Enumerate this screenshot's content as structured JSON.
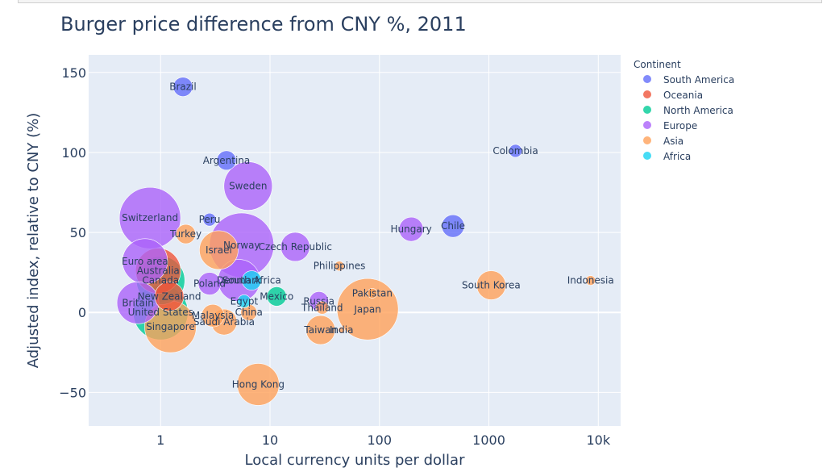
{
  "chart_data": {
    "type": "scatter",
    "title": "Burger price difference from CNY %, 2011",
    "xlabel": "Local currency units per dollar",
    "ylabel": "Adjusted index, relative to CNY (%)",
    "x_scale": "log",
    "xlim": [
      0.22,
      16000
    ],
    "ylim": [
      -71,
      161
    ],
    "x_ticks": [
      1,
      10,
      100,
      1000,
      10000
    ],
    "x_tick_labels": [
      "1",
      "10",
      "100",
      "1000",
      "10k"
    ],
    "y_ticks": [
      150,
      100,
      50,
      0,
      -50
    ],
    "y_tick_labels": [
      "150",
      "100",
      "50",
      "0",
      "−50"
    ],
    "grid": true,
    "background": "#e5ecf6",
    "legend": {
      "title": "Continent",
      "placement": "right",
      "entries": [
        "South America",
        "Oceania",
        "North America",
        "Europe",
        "Asia",
        "Africa"
      ]
    },
    "colors": {
      "South America": "#636efa",
      "Oceania": "#ef553b",
      "North America": "#00cc96",
      "Europe": "#ab63fa",
      "Asia": "#ffa15a",
      "Africa": "#19d3f3"
    },
    "series": [
      {
        "name": "South America",
        "points": [
          {
            "label": "Brazil",
            "x": 1.6,
            "y": 141,
            "size": 12
          },
          {
            "label": "Argentina",
            "x": 4.0,
            "y": 95,
            "size": 12
          },
          {
            "label": "Peru",
            "x": 2.8,
            "y": 58,
            "size": 8
          },
          {
            "label": "Colombia",
            "x": 1750,
            "y": 101,
            "size": 8
          },
          {
            "label": "Chile",
            "x": 470,
            "y": 54,
            "size": 14
          }
        ]
      },
      {
        "name": "Oceania",
        "points": [
          {
            "label": "Australia",
            "x": 0.95,
            "y": 26,
            "size": 28
          },
          {
            "label": "New Zealand",
            "x": 1.2,
            "y": 10,
            "size": 18
          }
        ]
      },
      {
        "name": "North America",
        "points": [
          {
            "label": "Canada",
            "x": 1.0,
            "y": 20,
            "size": 30
          },
          {
            "label": "United States",
            "x": 1.0,
            "y": 0,
            "size": 34
          },
          {
            "label": "Mexico",
            "x": 11.5,
            "y": 10,
            "size": 12
          }
        ]
      },
      {
        "name": "Europe",
        "points": [
          {
            "label": "Switzerland",
            "x": 0.8,
            "y": 59,
            "size": 38
          },
          {
            "label": "Euro area",
            "x": 0.72,
            "y": 32,
            "size": 28
          },
          {
            "label": "Britain",
            "x": 0.62,
            "y": 6,
            "size": 26
          },
          {
            "label": "Sweden",
            "x": 6.3,
            "y": 79,
            "size": 30
          },
          {
            "label": "Norway",
            "x": 5.5,
            "y": 42,
            "size": 40
          },
          {
            "label": "Denmark",
            "x": 5.2,
            "y": 20,
            "size": 26
          },
          {
            "label": "Poland",
            "x": 2.8,
            "y": 18,
            "size": 14
          },
          {
            "label": "Czech Republic",
            "x": 17,
            "y": 41,
            "size": 18
          },
          {
            "label": "Hungary",
            "x": 195,
            "y": 52,
            "size": 15
          },
          {
            "label": "Russia",
            "x": 28,
            "y": 7,
            "size": 12
          }
        ]
      },
      {
        "name": "Asia",
        "points": [
          {
            "label": "Turkey",
            "x": 1.7,
            "y": 49,
            "size": 12
          },
          {
            "label": "Israel",
            "x": 3.4,
            "y": 39,
            "size": 24
          },
          {
            "label": "Philippines",
            "x": 43,
            "y": 29,
            "size": 6
          },
          {
            "label": "Indonesia",
            "x": 8500,
            "y": 20,
            "size": 6
          },
          {
            "label": "South Korea",
            "x": 1050,
            "y": 17,
            "size": 18
          },
          {
            "label": "Pakistan",
            "x": 86,
            "y": 12,
            "size": 6
          },
          {
            "label": "Japan",
            "x": 78,
            "y": 2,
            "size": 38
          },
          {
            "label": "Thailand",
            "x": 30,
            "y": 3,
            "size": 8
          },
          {
            "label": "Malaysia",
            "x": 3.0,
            "y": -2,
            "size": 14
          },
          {
            "label": "China",
            "x": 6.4,
            "y": 0,
            "size": 10
          },
          {
            "label": "Saudi Arabia",
            "x": 3.8,
            "y": -6,
            "size": 16
          },
          {
            "label": "Singapore",
            "x": 1.23,
            "y": -9,
            "size": 32
          },
          {
            "label": "Taiwan",
            "x": 29,
            "y": -11,
            "size": 18
          },
          {
            "label": "India",
            "x": 45,
            "y": -11,
            "size": 4
          },
          {
            "label": "Hong Kong",
            "x": 7.8,
            "y": -45,
            "size": 26
          }
        ]
      },
      {
        "name": "Africa",
        "points": [
          {
            "label": "South Africa",
            "x": 6.8,
            "y": 20,
            "size": 12
          },
          {
            "label": "Egypt",
            "x": 5.8,
            "y": 7,
            "size": 8
          }
        ]
      }
    ]
  }
}
